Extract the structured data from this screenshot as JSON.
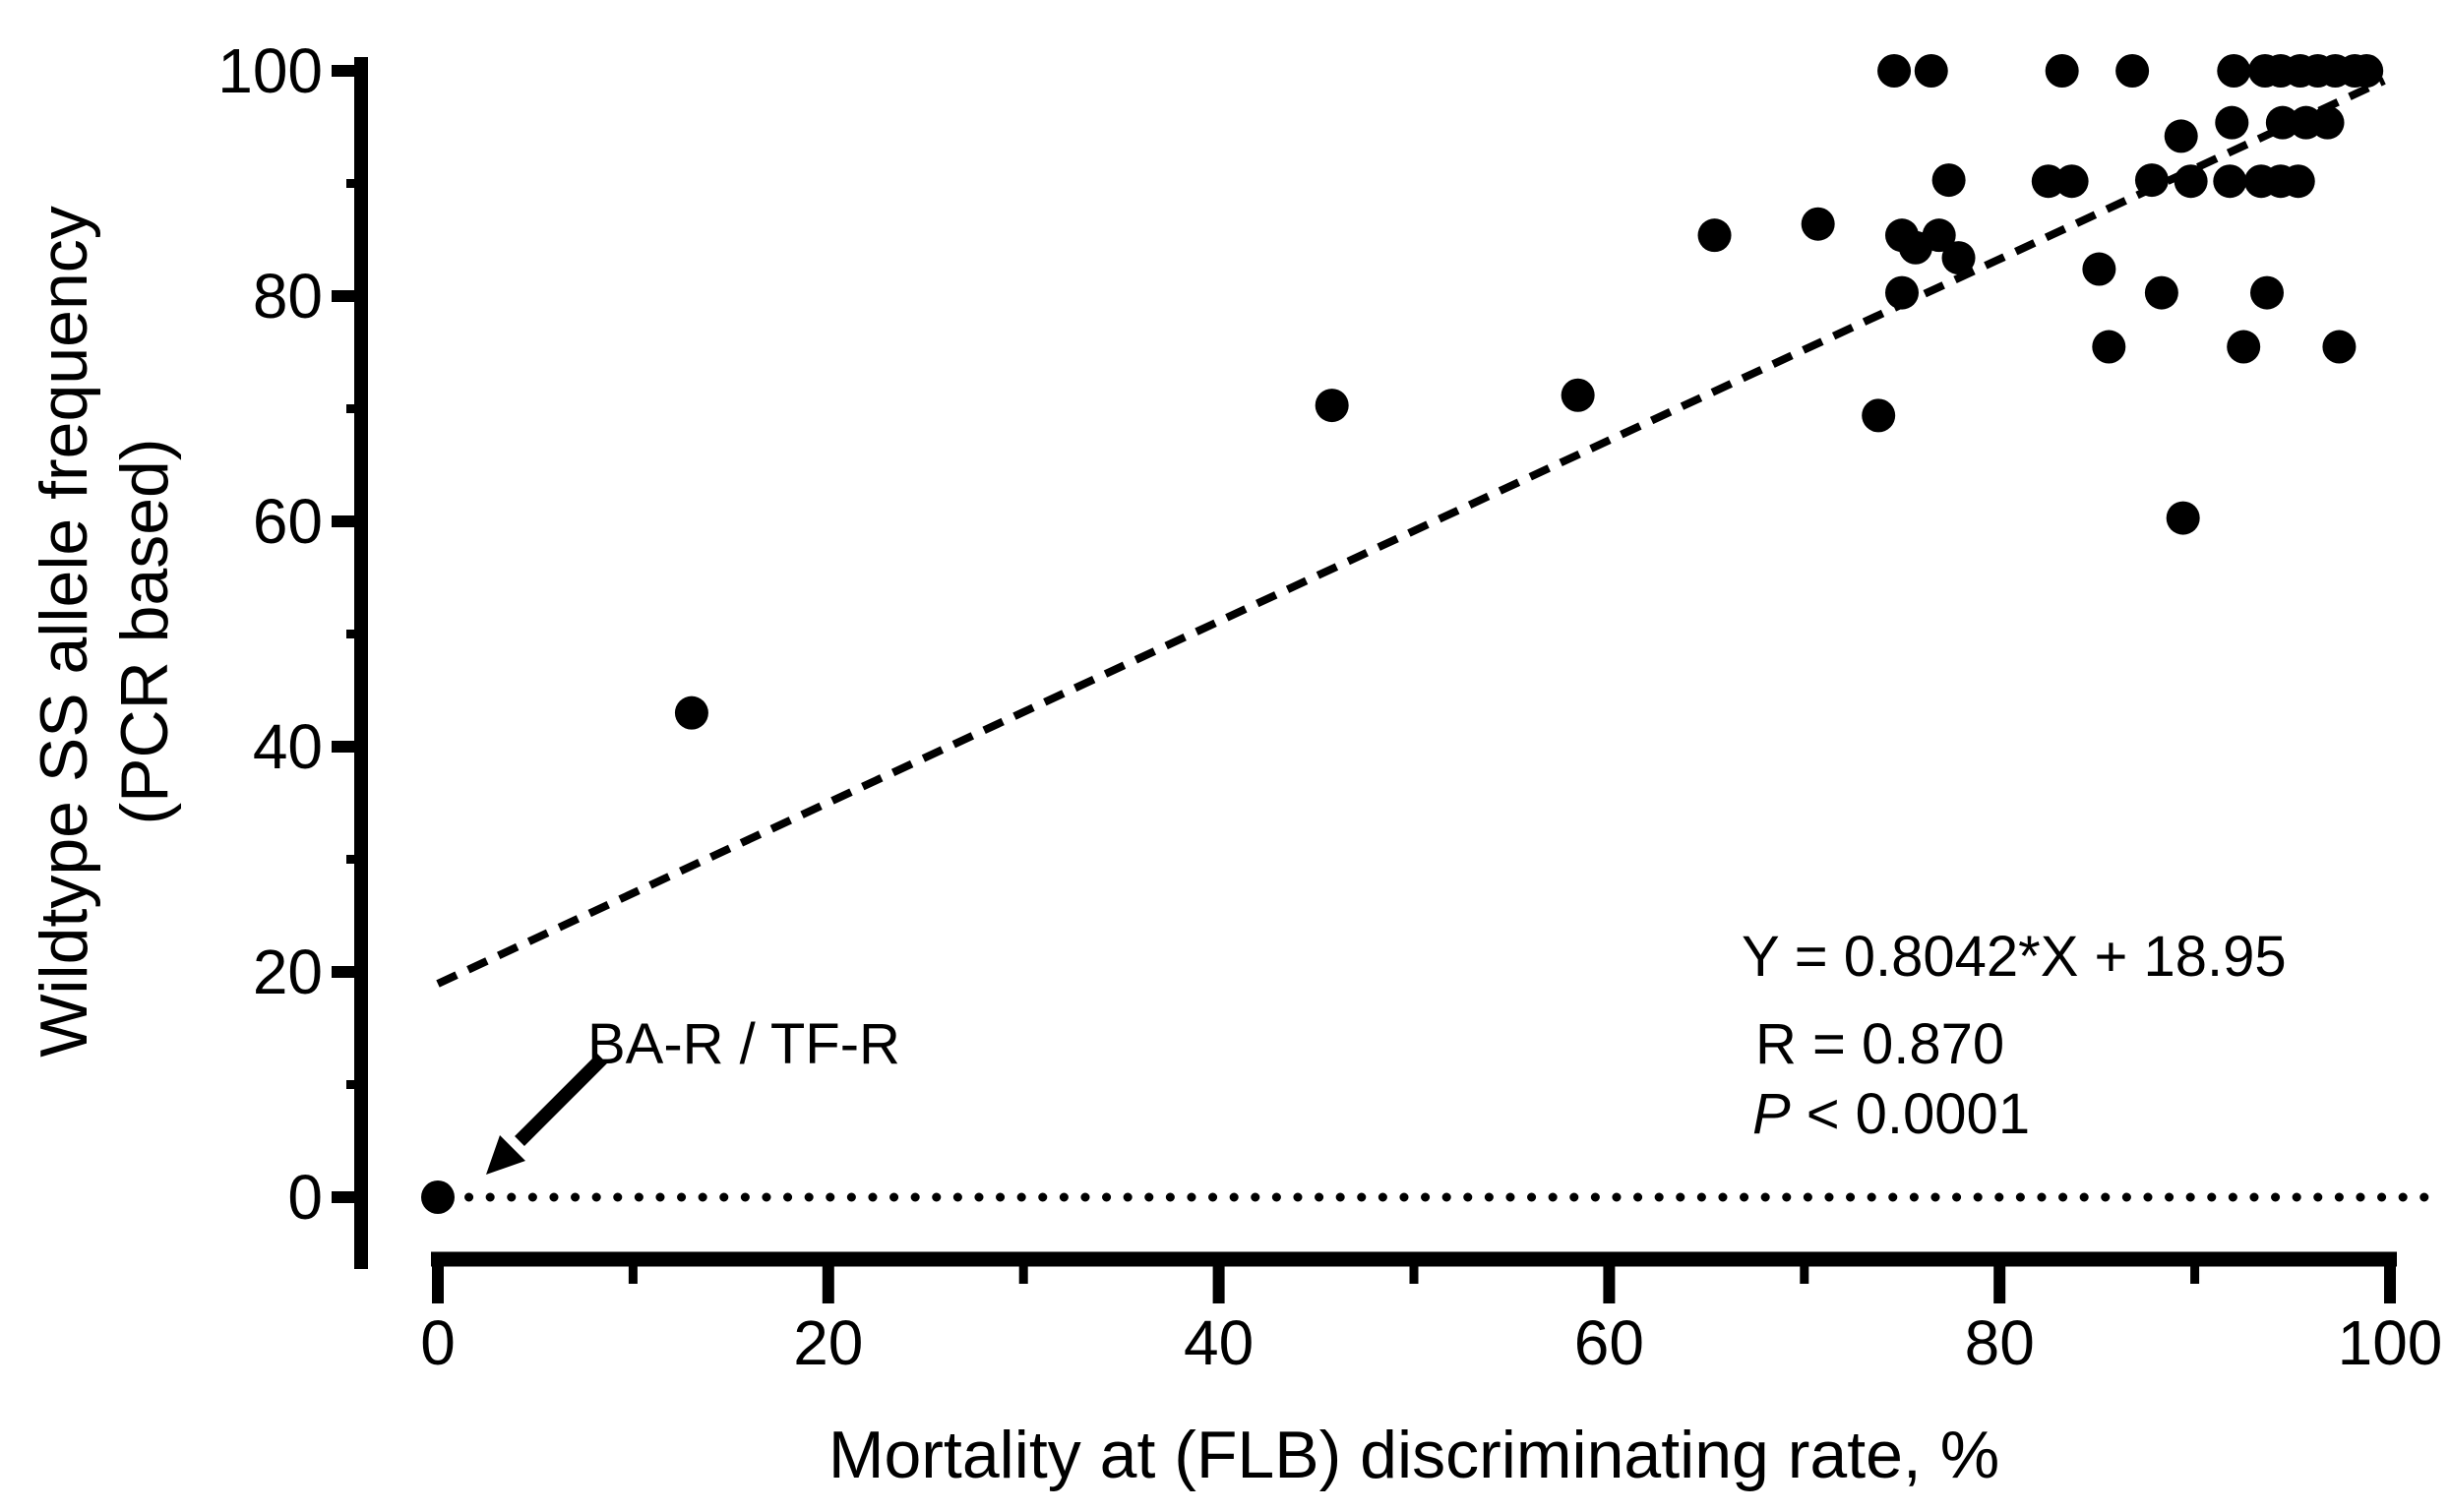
{
  "figure": {
    "background": "#ffffff",
    "ink": "#000000"
  },
  "chart_data": {
    "type": "scatter",
    "title": "",
    "xlabel": "Mortality at (FLB) discriminating rate, %",
    "ylabel": "Wildtype SS allele frequency (PCR based)",
    "ylabel_line1": "Wildtype SS allele frequency",
    "ylabel_line2": "(PCR based)",
    "xlim": [
      0,
      100
    ],
    "ylim": [
      0,
      100
    ],
    "x_major_ticks": [
      0,
      20,
      40,
      60,
      80,
      100
    ],
    "x_minor_ticks": [
      10,
      30,
      50,
      70,
      90
    ],
    "y_major_ticks": [
      0,
      20,
      40,
      60,
      80,
      100
    ],
    "y_minor_ticks": [
      10,
      30,
      50,
      70,
      90
    ],
    "grid": "off",
    "legend": "none",
    "marker": {
      "shape": "circle",
      "color": "#000000",
      "radius_px": 17
    },
    "points": [
      [
        0,
        0
      ],
      [
        13,
        43
      ],
      [
        45.8,
        70.3
      ],
      [
        58.4,
        71.2
      ],
      [
        65.4,
        85.4
      ],
      [
        70.7,
        86.4
      ],
      [
        73.8,
        69.4
      ],
      [
        74.6,
        100
      ],
      [
        75,
        80.3
      ],
      [
        75,
        85.4
      ],
      [
        75.7,
        84.3
      ],
      [
        76.5,
        100
      ],
      [
        76.9,
        85.4
      ],
      [
        77.4,
        90.3
      ],
      [
        77.9,
        83.4
      ],
      [
        82.5,
        90.2
      ],
      [
        83.2,
        100
      ],
      [
        83.7,
        90.2
      ],
      [
        85.1,
        82.4
      ],
      [
        85.6,
        75.5
      ],
      [
        86.8,
        100
      ],
      [
        87.8,
        90.3
      ],
      [
        88.3,
        80.3
      ],
      [
        89.3,
        94.2
      ],
      [
        89.4,
        60.3
      ],
      [
        89.8,
        90.2
      ],
      [
        91.8,
        90.2
      ],
      [
        91.9,
        95.4
      ],
      [
        92,
        100
      ],
      [
        92.5,
        75.5
      ],
      [
        93.4,
        90.2
      ],
      [
        93.6,
        100
      ],
      [
        93.7,
        80.3
      ],
      [
        94.4,
        90.2
      ],
      [
        94.4,
        100
      ],
      [
        94.5,
        95.4
      ],
      [
        95.3,
        90.2
      ],
      [
        95.4,
        100
      ],
      [
        95.7,
        95.4
      ],
      [
        96.3,
        100
      ],
      [
        96.8,
        95.4
      ],
      [
        97.2,
        100
      ],
      [
        97.4,
        75.5
      ],
      [
        98.2,
        100
      ],
      [
        98.8,
        100
      ]
    ],
    "regression_line": {
      "equation": "Y = 0.8042*X + 18.95",
      "slope": 0.8042,
      "intercept": 18.95,
      "x_start": 0,
      "x_end": 99.7,
      "style": "dashed"
    },
    "baseline": {
      "y": 0,
      "x_start": 0.5,
      "x_end": 102.6,
      "style": "dotted"
    },
    "annotations": {
      "equation_label": "Y = 0.8042*X + 18.95",
      "r_label": "R = 0.870",
      "p_symbol": "P",
      "p_rest": "< 0.0001",
      "point_label": "BA-R / TF-R",
      "labeled_point": [
        0,
        0
      ]
    }
  }
}
